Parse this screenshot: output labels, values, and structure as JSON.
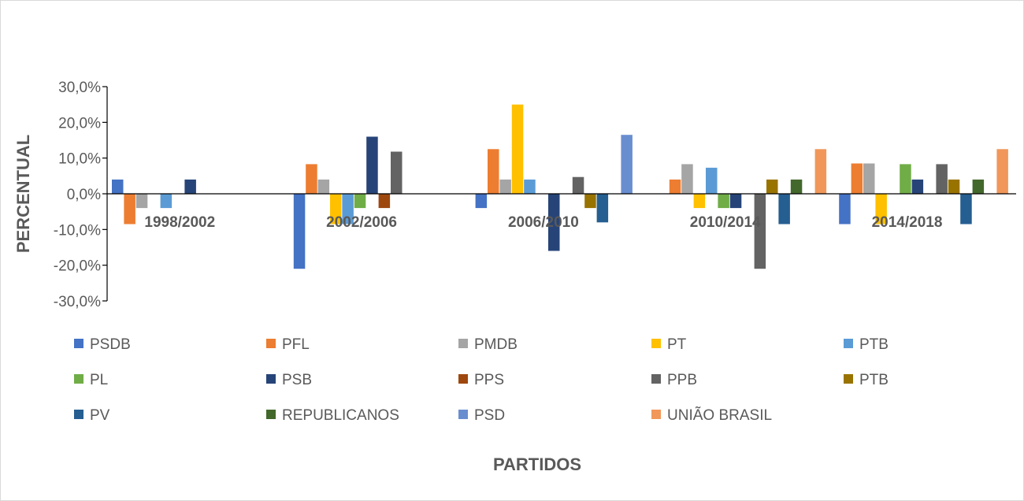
{
  "chart_data": {
    "type": "bar",
    "xlabel": "PARTIDOS",
    "ylabel": "PERCENTUAL",
    "ylim": [
      -0.3,
      0.3
    ],
    "yticks": [
      0.3,
      0.2,
      0.1,
      0.0,
      -0.1,
      -0.2,
      -0.3
    ],
    "ytick_labels": [
      "30,0%",
      "20,0%",
      "10,0%",
      "0,0%",
      "-10,0%",
      "-20,0%",
      "-30,0%"
    ],
    "legend_position": "bottom",
    "grid": false,
    "categories": [
      "1998/2002",
      "2002/2006",
      "2006/2010",
      "2010/2014",
      "2014/2018"
    ],
    "series": [
      {
        "name": "PSDB",
        "color": "#4472C4",
        "values": [
          0.04,
          -0.21,
          -0.04,
          0.0,
          -0.085
        ]
      },
      {
        "name": "PFL",
        "color": "#ED7D31",
        "values": [
          -0.085,
          0.083,
          0.125,
          0.04,
          0.085
        ]
      },
      {
        "name": "PMDB",
        "color": "#A5A5A5",
        "values": [
          -0.04,
          0.04,
          0.04,
          0.083,
          0.085
        ]
      },
      {
        "name": "PT",
        "color": "#FFC000",
        "values": [
          0.0,
          -0.085,
          0.25,
          -0.04,
          -0.085
        ]
      },
      {
        "name": "PTB",
        "color": "#5B9BD5",
        "values": [
          -0.04,
          -0.085,
          0.04,
          0.073,
          0.0
        ]
      },
      {
        "name": "PL",
        "color": "#70AD47",
        "values": [
          0.0,
          -0.04,
          0.0,
          -0.04,
          0.083
        ]
      },
      {
        "name": "PSB",
        "color": "#264478",
        "values": [
          0.04,
          0.16,
          -0.16,
          -0.04,
          0.04
        ]
      },
      {
        "name": "PPS",
        "color": "#9E480E",
        "values": [
          0.0,
          -0.04,
          0.0,
          0.0,
          0.0
        ]
      },
      {
        "name": "PPB",
        "color": "#636363",
        "values": [
          0.0,
          0.118,
          0.047,
          -0.21,
          0.083
        ]
      },
      {
        "name": "PTB",
        "color": "#997300",
        "values": [
          0.0,
          0.0,
          -0.04,
          0.04,
          0.04
        ]
      },
      {
        "name": "PV",
        "color": "#255E91",
        "values": [
          0.0,
          0.0,
          -0.08,
          -0.085,
          -0.085
        ]
      },
      {
        "name": "REPUBLICANOS",
        "color": "#43682B",
        "values": [
          0.0,
          0.0,
          0.0,
          0.04,
          0.04
        ]
      },
      {
        "name": "PSD",
        "color": "#698ED0",
        "values": [
          0.0,
          0.0,
          0.165,
          0.0,
          0.0
        ]
      },
      {
        "name": "UNIÃO BRASIL",
        "color": "#F1975A",
        "values": [
          0.0,
          0.0,
          0.0,
          0.125,
          0.125
        ]
      }
    ]
  }
}
